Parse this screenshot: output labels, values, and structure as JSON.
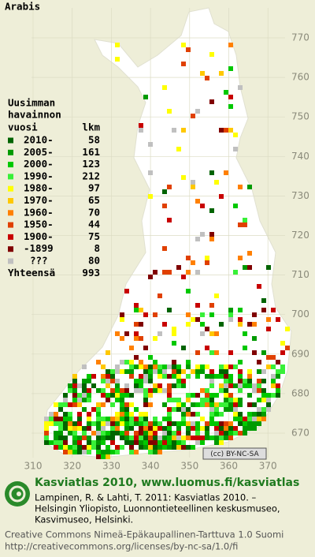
{
  "title": "Arabis",
  "legend": {
    "heading": [
      "Uusimman",
      "havainnon"
    ],
    "subheading": {
      "label": "vuosi",
      "count": "lkm"
    },
    "rows": [
      {
        "label": "2010-",
        "count": 58,
        "color": "#006400"
      },
      {
        "label": "2005-",
        "count": 161,
        "color": "#009a00"
      },
      {
        "label": "2000-",
        "count": 123,
        "color": "#00c800"
      },
      {
        "label": "1990-",
        "count": 212,
        "color": "#38f038"
      },
      {
        "label": "1980-",
        "count": 97,
        "color": "#ffff00"
      },
      {
        "label": "1970-",
        "count": 65,
        "color": "#ffc800"
      },
      {
        "label": "1960-",
        "count": 70,
        "color": "#ff8000"
      },
      {
        "label": "1950-",
        "count": 44,
        "color": "#e04000"
      },
      {
        "label": "1900-",
        "count": 75,
        "color": "#c80000"
      },
      {
        "label": "-1899",
        "count": 8,
        "color": "#800000"
      },
      {
        "label": "???",
        "count": 80,
        "color": "#c0c0c0"
      }
    ],
    "total": {
      "label": "Yhteensä",
      "count": 993
    }
  },
  "grid": {
    "y_labels": [
      770,
      760,
      750,
      740,
      730,
      720,
      710,
      700,
      690,
      680,
      670
    ],
    "x_labels": [
      310,
      320,
      330,
      340,
      350,
      360,
      370
    ]
  },
  "badge": "(cc) BY-NC-SA",
  "footer": {
    "brand": "Kasviatlas 2010, www.luomus.fi/kasviatlas",
    "citation": [
      "Lampinen, R. & Lahti, T. 2011: Kasviatlas 2010. –",
      "Helsingin Yliopisto, Luonnontieteellinen keskusmuseo,",
      "Kasvimuseo, Helsinki."
    ],
    "license": [
      "Creative Commons Nimeä-Epäkaupallinen-Tarttuva 1.0 Suomi",
      "http://creativecommons.org/licenses/by-nc-sa/1.0/fi"
    ]
  }
}
